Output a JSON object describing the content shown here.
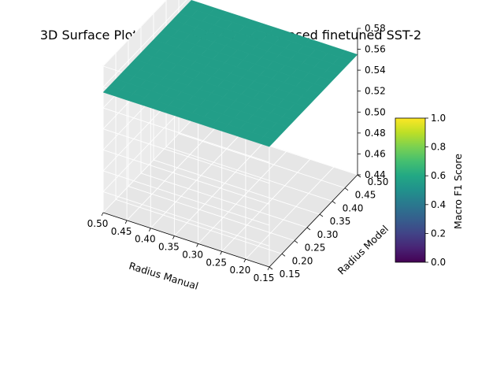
{
  "chart_data": {
    "type": "surface",
    "title": "3D Surface Plot für DistilBERT base uncased finetuned SST-2",
    "xlabel": "Radius Manual",
    "ylabel": "Radius Model",
    "zlabel": "",
    "xlim": [
      0.15,
      0.5
    ],
    "ylim": [
      0.15,
      0.5
    ],
    "zlim": [
      0.44,
      0.58
    ],
    "x_ticks": [
      "0.15",
      "0.20",
      "0.25",
      "0.30",
      "0.35",
      "0.40",
      "0.45",
      "0.50"
    ],
    "y_ticks": [
      "0.15",
      "0.20",
      "0.25",
      "0.30",
      "0.35",
      "0.40",
      "0.45",
      "0.50"
    ],
    "z_ticks": [
      "0.44",
      "0.46",
      "0.48",
      "0.50",
      "0.52",
      "0.54",
      "0.56",
      "0.58"
    ],
    "x": [
      0.15,
      0.175,
      0.2,
      0.225,
      0.25,
      0.275,
      0.3,
      0.325,
      0.35,
      0.375,
      0.4,
      0.425,
      0.45,
      0.475,
      0.5
    ],
    "y": [
      0.15,
      0.175,
      0.2,
      0.225,
      0.25,
      0.275,
      0.3,
      0.325,
      0.35,
      0.375,
      0.4,
      0.425,
      0.45,
      0.475,
      0.5
    ],
    "z": [
      [
        0.555,
        0.555,
        0.555,
        0.555,
        0.555,
        0.555,
        0.555,
        0.555,
        0.555,
        0.555,
        0.555,
        0.555,
        0.555,
        0.555,
        0.555
      ],
      [
        0.555,
        0.555,
        0.555,
        0.555,
        0.555,
        0.555,
        0.555,
        0.555,
        0.555,
        0.555,
        0.555,
        0.555,
        0.555,
        0.555,
        0.555
      ],
      [
        0.555,
        0.555,
        0.555,
        0.555,
        0.555,
        0.555,
        0.555,
        0.555,
        0.555,
        0.555,
        0.555,
        0.555,
        0.555,
        0.555,
        0.555
      ],
      [
        0.555,
        0.555,
        0.555,
        0.555,
        0.555,
        0.555,
        0.555,
        0.555,
        0.555,
        0.555,
        0.555,
        0.555,
        0.555,
        0.555,
        0.555
      ],
      [
        0.555,
        0.555,
        0.555,
        0.555,
        0.555,
        0.555,
        0.555,
        0.555,
        0.555,
        0.555,
        0.555,
        0.555,
        0.555,
        0.555,
        0.555
      ],
      [
        0.555,
        0.555,
        0.555,
        0.555,
        0.555,
        0.555,
        0.555,
        0.555,
        0.555,
        0.555,
        0.555,
        0.555,
        0.555,
        0.555,
        0.555
      ],
      [
        0.555,
        0.555,
        0.555,
        0.555,
        0.555,
        0.555,
        0.555,
        0.555,
        0.555,
        0.555,
        0.555,
        0.555,
        0.555,
        0.555,
        0.555
      ],
      [
        0.555,
        0.555,
        0.555,
        0.555,
        0.555,
        0.555,
        0.555,
        0.555,
        0.555,
        0.555,
        0.555,
        0.555,
        0.555,
        0.555,
        0.555
      ],
      [
        0.555,
        0.555,
        0.555,
        0.555,
        0.555,
        0.555,
        0.555,
        0.555,
        0.555,
        0.555,
        0.555,
        0.555,
        0.555,
        0.555,
        0.555
      ],
      [
        0.555,
        0.555,
        0.555,
        0.555,
        0.555,
        0.555,
        0.555,
        0.555,
        0.555,
        0.555,
        0.555,
        0.555,
        0.555,
        0.555,
        0.555
      ],
      [
        0.555,
        0.555,
        0.555,
        0.555,
        0.555,
        0.555,
        0.555,
        0.555,
        0.555,
        0.555,
        0.555,
        0.555,
        0.555,
        0.555,
        0.555
      ],
      [
        0.555,
        0.555,
        0.555,
        0.555,
        0.555,
        0.555,
        0.555,
        0.555,
        0.555,
        0.555,
        0.555,
        0.555,
        0.555,
        0.555,
        0.555
      ],
      [
        0.555,
        0.555,
        0.555,
        0.555,
        0.555,
        0.555,
        0.555,
        0.555,
        0.555,
        0.555,
        0.555,
        0.555,
        0.555,
        0.555,
        0.555
      ],
      [
        0.555,
        0.555,
        0.555,
        0.555,
        0.555,
        0.555,
        0.555,
        0.555,
        0.555,
        0.555,
        0.555,
        0.555,
        0.555,
        0.555,
        0.555
      ],
      [
        0.555,
        0.555,
        0.555,
        0.555,
        0.555,
        0.555,
        0.555,
        0.555,
        0.555,
        0.555,
        0.555,
        0.555,
        0.555,
        0.555,
        0.555
      ]
    ],
    "colormap": "viridis",
    "colorbar": {
      "label": "Macro F1 Score",
      "range": [
        0.0,
        1.0
      ],
      "ticks": [
        "0.0",
        "0.2",
        "0.4",
        "0.6",
        "0.8",
        "1.0"
      ]
    },
    "grid": true
  }
}
